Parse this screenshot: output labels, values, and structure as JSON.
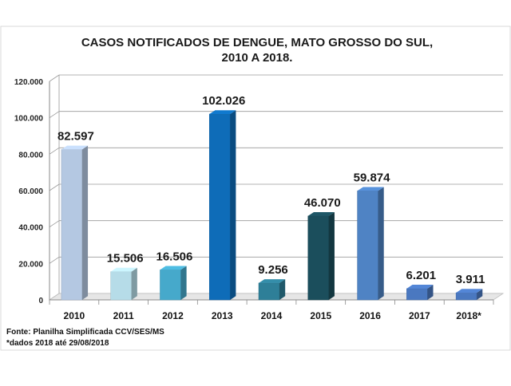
{
  "chart_data": {
    "type": "bar",
    "title_line1": "CASOS NOTIFICADOS  DE DENGUE, MATO GROSSO DO SUL,",
    "title_line2": "2010 A 2018.",
    "categories": [
      "2010",
      "2011",
      "2012",
      "2013",
      "2014",
      "2015",
      "2016",
      "2017",
      "2018*"
    ],
    "values": [
      82597,
      15506,
      16506,
      102026,
      9256,
      46070,
      59874,
      6201,
      3911
    ],
    "value_labels": [
      "82.597",
      "15.506",
      "16.506",
      "102.026",
      "9.256",
      "46.070",
      "59.874",
      "6.201",
      "3.911"
    ],
    "colors": [
      "#b4c8e2",
      "#b6dce8",
      "#46a9cb",
      "#0e6cb8",
      "#2e7f98",
      "#1b4e5c",
      "#4f83c4",
      "#4a78c0",
      "#4a78c0"
    ],
    "yticks": [
      0,
      20000,
      40000,
      60000,
      80000,
      100000,
      120000
    ],
    "ytick_labels": [
      "0",
      "20.000",
      "40.000",
      "60.000",
      "80.000",
      "100.000",
      "120.000"
    ],
    "ylim": [
      0,
      120000
    ],
    "grid": true,
    "xlabel": "",
    "ylabel": ""
  },
  "source_note": "Fonte: Planilha Simplificada CCV/SES/MS",
  "data_note": "*dados 2018 até 29/08/2018"
}
